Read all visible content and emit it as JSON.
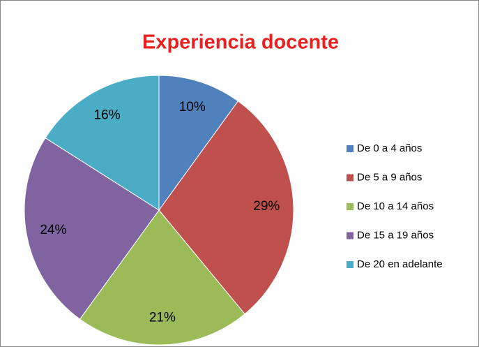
{
  "chart_data": {
    "type": "pie",
    "title": "Experiencia docente",
    "categories": [
      "De 0 a 4 años",
      "De 5 a 9 años",
      "De 10 a 14 años",
      "De 15 a 19 años",
      "De 20 en adelante"
    ],
    "values": [
      10,
      29,
      21,
      24,
      16
    ],
    "value_labels": [
      "10%",
      "29%",
      "21%",
      "24%",
      "16%"
    ],
    "colors": [
      "#4f81bd",
      "#c0504d",
      "#9bbb59",
      "#8064a2",
      "#4bacc6"
    ],
    "legend": "right"
  }
}
